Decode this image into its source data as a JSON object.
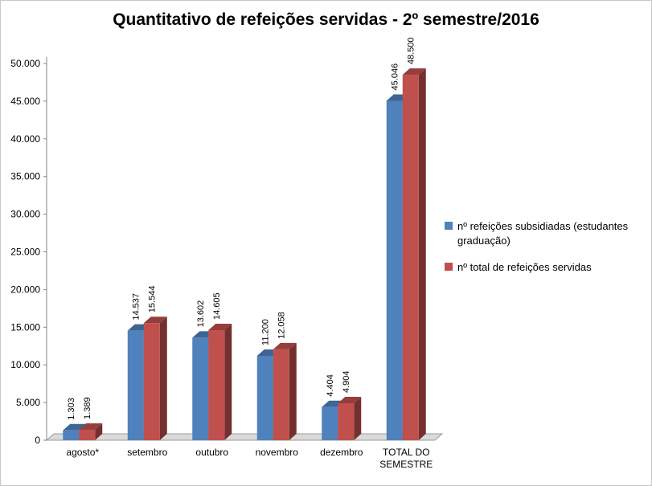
{
  "chart_data": {
    "type": "bar",
    "style": "3d-clustered",
    "title": "Quantitativo de refeições servidas - 2º semestre/2016",
    "categories": [
      "agosto*",
      "setembro",
      "outubro",
      "novembro",
      "dezembro",
      "TOTAL DO\nSEMESTRE"
    ],
    "series": [
      {
        "name": "nº refeições subsidiadas (estudantes graduação)",
        "color": "#4F81BD",
        "values": [
          1303,
          14537,
          13602,
          11200,
          4404,
          45046
        ],
        "labels": [
          "1.303",
          "14.537",
          "13.602",
          "11.200",
          "4.404",
          "45.046"
        ]
      },
      {
        "name": "nº total de refeições servidas",
        "color": "#C0504D",
        "values": [
          1389,
          15544,
          14605,
          12058,
          4904,
          48500
        ],
        "labels": [
          "1.389",
          "15.544",
          "14.605",
          "12.058",
          "4.904",
          "48.500"
        ]
      }
    ],
    "ylim": [
      0,
      50000
    ],
    "ytick_step": 5000,
    "ytick_labels": [
      "0",
      "5.000",
      "10.000",
      "15.000",
      "20.000",
      "25.000",
      "30.000",
      "35.000",
      "40.000",
      "45.000",
      "50.000"
    ],
    "grid": false,
    "legend_position": "right"
  }
}
